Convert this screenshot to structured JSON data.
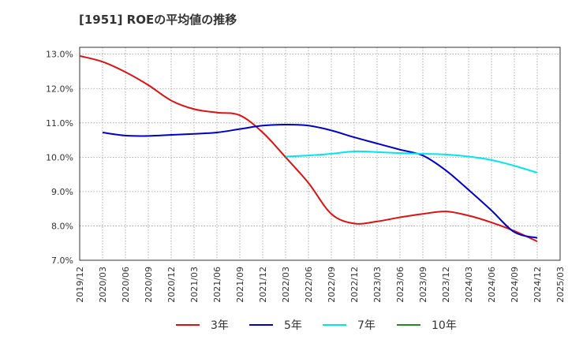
{
  "chart_data": {
    "type": "line",
    "title": "[1951]  ROEの平均値の推移",
    "xlabel": "",
    "ylabel": "",
    "ylim": [
      7.0,
      13.2
    ],
    "y_ticks": [
      "7.0%",
      "8.0%",
      "9.0%",
      "10.0%",
      "11.0%",
      "12.0%",
      "13.0%"
    ],
    "y_tick_values": [
      7.0,
      8.0,
      9.0,
      10.0,
      11.0,
      12.0,
      13.0
    ],
    "categories": [
      "2019/12",
      "2020/03",
      "2020/06",
      "2020/09",
      "2020/12",
      "2021/03",
      "2021/06",
      "2021/09",
      "2021/12",
      "2022/03",
      "2022/06",
      "2022/09",
      "2022/12",
      "2023/03",
      "2023/06",
      "2023/09",
      "2023/12",
      "2024/03",
      "2024/06",
      "2024/09",
      "2024/12",
      "2025/03"
    ],
    "series": [
      {
        "name": "3年",
        "color": "#dd1111",
        "values": [
          12.95,
          12.78,
          12.48,
          12.1,
          11.65,
          11.4,
          11.3,
          11.22,
          10.72,
          10.0,
          9.25,
          8.35,
          8.07,
          8.13,
          8.25,
          8.35,
          8.42,
          8.3,
          8.1,
          7.85,
          7.55,
          null
        ]
      },
      {
        "name": "5年",
        "color": "#0000cc",
        "values": [
          null,
          10.72,
          10.63,
          10.62,
          10.65,
          10.68,
          10.72,
          10.82,
          10.92,
          10.95,
          10.92,
          10.78,
          10.58,
          10.4,
          10.22,
          10.05,
          9.62,
          9.05,
          8.45,
          7.82,
          7.65,
          null
        ]
      },
      {
        "name": "7年",
        "color": "#00e5ee",
        "values": [
          null,
          null,
          null,
          null,
          null,
          null,
          null,
          null,
          null,
          10.02,
          10.05,
          10.1,
          10.17,
          10.15,
          10.12,
          10.1,
          10.08,
          10.02,
          9.92,
          9.75,
          9.55,
          null
        ]
      },
      {
        "name": "10年",
        "color": "#228b22",
        "values": [
          null,
          null,
          null,
          null,
          null,
          null,
          null,
          null,
          null,
          null,
          null,
          null,
          null,
          null,
          null,
          null,
          null,
          null,
          null,
          null,
          null,
          null
        ]
      }
    ],
    "legend_position": "bottom",
    "grid": true
  }
}
